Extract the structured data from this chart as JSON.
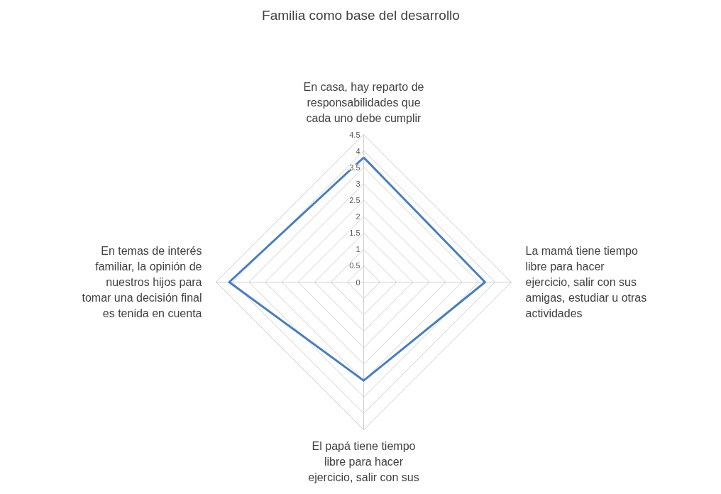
{
  "chart_data": {
    "type": "radar",
    "title": "Familia como base del desarrollo",
    "categories": [
      "En casa, hay reparto de responsabilidades que cada uno debe cumplir",
      "La mamá tiene tiempo libre para hacer ejercicio, salir con sus amigas, estudiar u otras actividades",
      "El papá tiene tiempo libre para hacer ejercicio, salir con sus",
      "En temas de interés familiar, la opinión de nuestros hijos para tomar una decisión final es tenida en cuenta"
    ],
    "series": [
      {
        "color": "#4a7ebb",
        "values": [
          3.8,
          3.7,
          3.0,
          4.1
        ]
      }
    ],
    "ylim": [
      0,
      4.5
    ],
    "yticks": [
      0,
      0.5,
      1,
      1.5,
      2,
      2.5,
      3,
      3.5,
      4,
      4.5
    ],
    "grid": true
  }
}
